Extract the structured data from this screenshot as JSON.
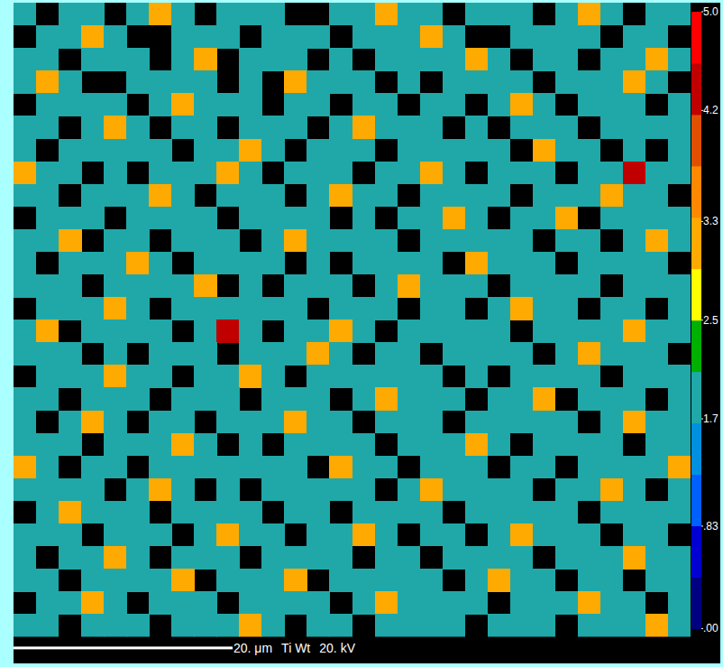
{
  "chart_data": {
    "type": "heatmap",
    "xlim": [
      0,
      61.8
    ],
    "ylim": [
      0,
      57.8
    ],
    "tick_labels": false,
    "element_label": "Ti Wt",
    "voltage_label": "20. kV",
    "scale_bar": {
      "value": 20,
      "label": "20. μm"
    },
    "colorbar": {
      "range": [
        0,
        5
      ],
      "ticks": [
        {
          "value": 0,
          "label": ".00"
        },
        {
          "value": 0.83,
          "label": ".83"
        },
        1.7,
        2.5,
        3.3,
        4.2,
        {
          "value": 5,
          "label": "5.0"
        }
      ],
      "colors": [
        "#000080",
        "#0000d0",
        "#0060ff",
        "#0090e0",
        "#20a8a8",
        "#00b000",
        "#ffff00",
        "#ffaa00",
        "#ff8800",
        "#e05000",
        "#c00000",
        "#ff0000"
      ]
    },
    "cells": [
      [
        1.7,
        null,
        1.7,
        1.7,
        null,
        1.7,
        3.3,
        1.7,
        null,
        1.7,
        1.7,
        1.7,
        null,
        null,
        1.7,
        1.7,
        3.3,
        1.7,
        1.7,
        null,
        1.7,
        1.7,
        1.7,
        null,
        1.7,
        3.3,
        1.7,
        null,
        1.7,
        1.7
      ],
      [
        null,
        1.7,
        1.7,
        3.3,
        1.7,
        null,
        null,
        1.7,
        1.7,
        1.7,
        null,
        1.7,
        1.7,
        1.7,
        null,
        1.7,
        1.7,
        1.7,
        3.3,
        1.7,
        null,
        null,
        1.7,
        1.7,
        1.7,
        1.7,
        null,
        1.7,
        1.7,
        null
      ],
      [
        1.7,
        1.7,
        null,
        1.7,
        1.7,
        1.7,
        null,
        1.7,
        3.3,
        null,
        1.7,
        1.7,
        1.7,
        null,
        1.7,
        null,
        1.7,
        1.7,
        1.7,
        1.7,
        3.3,
        1.7,
        null,
        1.7,
        1.7,
        null,
        1.7,
        1.7,
        3.3,
        1.7
      ],
      [
        1.7,
        3.3,
        1.7,
        null,
        null,
        1.7,
        1.7,
        1.7,
        1.7,
        null,
        1.7,
        null,
        3.3,
        1.7,
        1.7,
        1.7,
        null,
        1.7,
        null,
        1.7,
        1.7,
        1.7,
        1.7,
        null,
        1.7,
        1.7,
        1.7,
        3.3,
        1.7,
        null
      ],
      [
        null,
        1.7,
        1.7,
        1.7,
        1.7,
        null,
        1.7,
        3.3,
        1.7,
        1.7,
        1.7,
        null,
        1.7,
        1.7,
        null,
        1.7,
        1.7,
        null,
        1.7,
        1.7,
        null,
        1.7,
        3.3,
        1.7,
        null,
        1.7,
        1.7,
        1.7,
        null,
        1.7
      ],
      [
        1.7,
        1.7,
        null,
        1.7,
        3.3,
        1.7,
        null,
        1.7,
        1.7,
        null,
        1.7,
        1.7,
        1.7,
        null,
        1.7,
        3.3,
        1.7,
        1.7,
        1.7,
        null,
        1.7,
        null,
        1.7,
        1.7,
        1.7,
        null,
        1.7,
        1.7,
        1.7,
        1.7
      ],
      [
        1.7,
        null,
        1.7,
        1.7,
        1.7,
        1.7,
        1.7,
        null,
        1.7,
        1.7,
        3.3,
        1.7,
        null,
        1.7,
        1.7,
        1.7,
        null,
        1.7,
        1.7,
        1.7,
        1.7,
        1.7,
        null,
        3.3,
        1.7,
        1.7,
        null,
        1.7,
        null,
        1.7
      ],
      [
        3.3,
        1.7,
        1.7,
        null,
        1.7,
        null,
        1.7,
        1.7,
        1.7,
        3.3,
        1.7,
        null,
        1.7,
        1.7,
        1.7,
        null,
        1.7,
        1.7,
        3.3,
        1.7,
        null,
        1.7,
        1.7,
        1.7,
        null,
        1.7,
        1.7,
        4.2,
        1.7,
        1.7
      ],
      [
        1.7,
        1.7,
        null,
        1.7,
        1.7,
        1.7,
        3.3,
        1.7,
        null,
        1.7,
        1.7,
        1.7,
        null,
        1.7,
        3.3,
        1.7,
        1.7,
        null,
        1.7,
        1.7,
        1.7,
        1.7,
        null,
        1.7,
        1.7,
        1.7,
        3.3,
        1.7,
        1.7,
        null
      ],
      [
        null,
        1.7,
        1.7,
        1.7,
        null,
        1.7,
        1.7,
        1.7,
        1.7,
        null,
        1.7,
        1.7,
        1.7,
        1.7,
        null,
        1.7,
        null,
        1.7,
        1.7,
        3.3,
        1.7,
        null,
        1.7,
        1.7,
        3.3,
        null,
        1.7,
        1.7,
        1.7,
        1.7
      ],
      [
        1.7,
        1.7,
        3.3,
        null,
        1.7,
        1.7,
        null,
        1.7,
        1.7,
        1.7,
        null,
        1.7,
        3.3,
        1.7,
        1.7,
        1.7,
        1.7,
        null,
        1.7,
        1.7,
        1.7,
        1.7,
        1.7,
        null,
        1.7,
        1.7,
        null,
        1.7,
        3.3,
        1.7
      ],
      [
        1.7,
        null,
        1.7,
        1.7,
        1.7,
        3.3,
        1.7,
        null,
        1.7,
        1.7,
        1.7,
        1.7,
        null,
        1.7,
        null,
        1.7,
        1.7,
        1.7,
        1.7,
        null,
        3.3,
        1.7,
        1.7,
        1.7,
        null,
        1.7,
        1.7,
        1.7,
        1.7,
        null
      ],
      [
        1.7,
        1.7,
        1.7,
        null,
        1.7,
        1.7,
        1.7,
        1.7,
        3.3,
        null,
        1.7,
        null,
        1.7,
        1.7,
        1.7,
        null,
        1.7,
        3.3,
        1.7,
        1.7,
        1.7,
        null,
        1.7,
        1.7,
        1.7,
        1.7,
        null,
        1.7,
        1.7,
        1.7
      ],
      [
        null,
        1.7,
        1.7,
        1.7,
        3.3,
        1.7,
        null,
        1.7,
        1.7,
        1.7,
        1.7,
        1.7,
        1.7,
        null,
        1.7,
        1.7,
        1.7,
        null,
        1.7,
        1.7,
        null,
        1.7,
        3.3,
        1.7,
        1.7,
        null,
        1.7,
        1.7,
        null,
        1.7
      ],
      [
        1.7,
        3.3,
        null,
        1.7,
        1.7,
        1.7,
        1.7,
        null,
        1.7,
        4.2,
        1.7,
        null,
        1.7,
        1.7,
        3.3,
        1.7,
        null,
        1.7,
        1.7,
        1.7,
        1.7,
        1.7,
        null,
        1.7,
        1.7,
        1.7,
        1.7,
        3.3,
        1.7,
        1.7
      ],
      [
        1.7,
        1.7,
        1.7,
        null,
        1.7,
        null,
        1.7,
        1.7,
        1.7,
        null,
        1.7,
        1.7,
        1.7,
        3.3,
        1.7,
        null,
        1.7,
        1.7,
        null,
        1.7,
        1.7,
        1.7,
        1.7,
        null,
        1.7,
        3.3,
        1.7,
        1.7,
        1.7,
        null
      ],
      [
        null,
        1.7,
        1.7,
        1.7,
        3.3,
        1.7,
        1.7,
        null,
        1.7,
        1.7,
        3.3,
        1.7,
        null,
        1.7,
        1.7,
        1.7,
        1.7,
        1.7,
        1.7,
        null,
        1.7,
        null,
        1.7,
        1.7,
        1.7,
        1.7,
        null,
        1.7,
        1.7,
        1.7
      ],
      [
        1.7,
        1.7,
        null,
        1.7,
        1.7,
        1.7,
        null,
        1.7,
        1.7,
        1.7,
        null,
        1.7,
        1.7,
        1.7,
        null,
        1.7,
        3.3,
        1.7,
        1.7,
        1.7,
        null,
        1.7,
        1.7,
        3.3,
        null,
        1.7,
        1.7,
        1.7,
        null,
        1.7
      ],
      [
        1.7,
        null,
        1.7,
        3.3,
        1.7,
        null,
        1.7,
        1.7,
        null,
        1.7,
        1.7,
        1.7,
        3.3,
        1.7,
        1.7,
        null,
        1.7,
        1.7,
        1.7,
        null,
        1.7,
        1.7,
        1.7,
        1.7,
        1.7,
        null,
        1.7,
        3.3,
        1.7,
        1.7
      ],
      [
        1.7,
        1.7,
        1.7,
        null,
        1.7,
        1.7,
        1.7,
        3.3,
        1.7,
        null,
        1.7,
        null,
        1.7,
        1.7,
        1.7,
        1.7,
        null,
        1.7,
        1.7,
        1.7,
        3.3,
        1.7,
        null,
        1.7,
        1.7,
        1.7,
        1.7,
        null,
        1.7,
        1.7
      ],
      [
        3.3,
        1.7,
        null,
        1.7,
        1.7,
        null,
        1.7,
        1.7,
        1.7,
        1.7,
        1.7,
        1.7,
        1.7,
        null,
        3.3,
        1.7,
        1.7,
        null,
        1.7,
        1.7,
        1.7,
        null,
        1.7,
        1.7,
        null,
        1.7,
        1.7,
        1.7,
        1.7,
        3.3
      ],
      [
        1.7,
        1.7,
        1.7,
        1.7,
        null,
        1.7,
        3.3,
        1.7,
        null,
        1.7,
        null,
        1.7,
        1.7,
        1.7,
        1.7,
        1.7,
        null,
        1.7,
        3.3,
        1.7,
        1.7,
        1.7,
        1.7,
        null,
        1.7,
        1.7,
        3.3,
        1.7,
        null,
        1.7
      ],
      [
        null,
        1.7,
        3.3,
        1.7,
        1.7,
        1.7,
        null,
        1.7,
        1.7,
        1.7,
        1.7,
        null,
        1.7,
        1.7,
        null,
        1.7,
        1.7,
        1.7,
        1.7,
        null,
        1.7,
        1.7,
        1.7,
        1.7,
        1.7,
        null,
        1.7,
        1.7,
        1.7,
        1.7
      ],
      [
        1.7,
        1.7,
        1.7,
        null,
        1.7,
        1.7,
        1.7,
        null,
        1.7,
        3.3,
        1.7,
        1.7,
        null,
        1.7,
        1.7,
        3.3,
        1.7,
        null,
        1.7,
        1.7,
        null,
        1.7,
        3.3,
        1.7,
        1.7,
        1.7,
        null,
        1.7,
        1.7,
        null
      ],
      [
        1.7,
        null,
        1.7,
        1.7,
        3.3,
        1.7,
        null,
        1.7,
        1.7,
        1.7,
        null,
        1.7,
        1.7,
        1.7,
        1.7,
        null,
        1.7,
        1.7,
        null,
        1.7,
        1.7,
        1.7,
        1.7,
        null,
        1.7,
        1.7,
        1.7,
        3.3,
        1.7,
        1.7
      ],
      [
        1.7,
        1.7,
        null,
        1.7,
        1.7,
        1.7,
        1.7,
        3.3,
        null,
        1.7,
        1.7,
        1.7,
        3.3,
        null,
        1.7,
        1.7,
        1.7,
        1.7,
        1.7,
        null,
        1.7,
        3.3,
        1.7,
        1.7,
        null,
        1.7,
        1.7,
        null,
        1.7,
        1.7
      ],
      [
        null,
        1.7,
        1.7,
        3.3,
        1.7,
        null,
        1.7,
        1.7,
        1.7,
        null,
        1.7,
        1.7,
        1.7,
        1.7,
        null,
        1.7,
        3.3,
        1.7,
        1.7,
        1.7,
        1.7,
        null,
        1.7,
        1.7,
        1.7,
        3.3,
        1.7,
        1.7,
        null,
        1.7
      ],
      [
        1.7,
        1.7,
        null,
        1.7,
        1.7,
        1.7,
        null,
        1.7,
        1.7,
        1.7,
        3.3,
        1.7,
        null,
        1.7,
        1.7,
        null,
        1.7,
        1.7,
        1.7,
        1.7,
        null,
        1.7,
        1.7,
        1.7,
        null,
        1.7,
        1.7,
        1.7,
        3.3,
        1.7
      ]
    ]
  }
}
